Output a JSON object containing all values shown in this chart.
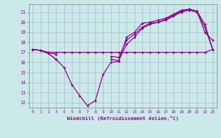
{
  "x": [
    0,
    1,
    2,
    3,
    4,
    5,
    6,
    7,
    8,
    9,
    10,
    11,
    12,
    13,
    14,
    15,
    16,
    17,
    18,
    19,
    20,
    21,
    22,
    23
  ],
  "line1": [
    17.3,
    17.2,
    16.9,
    16.3,
    15.5,
    13.8,
    12.7,
    11.7,
    12.2,
    14.8,
    16.0,
    16.1,
    18.5,
    19.0,
    19.9,
    20.0,
    20.2,
    20.4,
    20.8,
    21.2,
    21.3,
    21.1,
    19.0,
    18.2
  ],
  "line2": [
    17.3,
    17.2,
    16.9,
    16.3,
    null,
    null,
    null,
    null,
    null,
    null,
    16.3,
    16.2,
    17.8,
    18.5,
    19.4,
    19.8,
    20.0,
    20.2,
    20.6,
    21.0,
    21.2,
    21.0,
    19.5,
    17.3
  ],
  "line3": [
    17.3,
    17.2,
    17.0,
    16.8,
    null,
    null,
    null,
    null,
    null,
    null,
    16.6,
    16.5,
    18.2,
    18.8,
    19.5,
    19.9,
    20.0,
    20.3,
    20.7,
    21.1,
    21.3,
    21.1,
    19.8,
    17.3
  ],
  "line4": [
    17.3,
    17.2,
    17.0,
    17.0,
    17.0,
    17.0,
    17.0,
    17.0,
    17.0,
    17.0,
    17.0,
    17.0,
    17.0,
    17.0,
    17.0,
    17.0,
    17.0,
    17.0,
    17.0,
    17.0,
    17.0,
    17.0,
    17.0,
    17.3
  ],
  "bg_color": "#cce9e9",
  "line_color": "#880088",
  "grid_color": "#99aacc",
  "xlabel": "Windchill (Refroidissement éolien,°C)",
  "xlim": [
    -0.5,
    23.5
  ],
  "ylim": [
    11.5,
    21.8
  ],
  "yticks": [
    12,
    13,
    14,
    15,
    16,
    17,
    18,
    19,
    20,
    21
  ],
  "xticks": [
    0,
    1,
    2,
    3,
    4,
    5,
    6,
    7,
    8,
    9,
    10,
    11,
    12,
    13,
    14,
    15,
    16,
    17,
    18,
    19,
    20,
    21,
    22,
    23
  ]
}
